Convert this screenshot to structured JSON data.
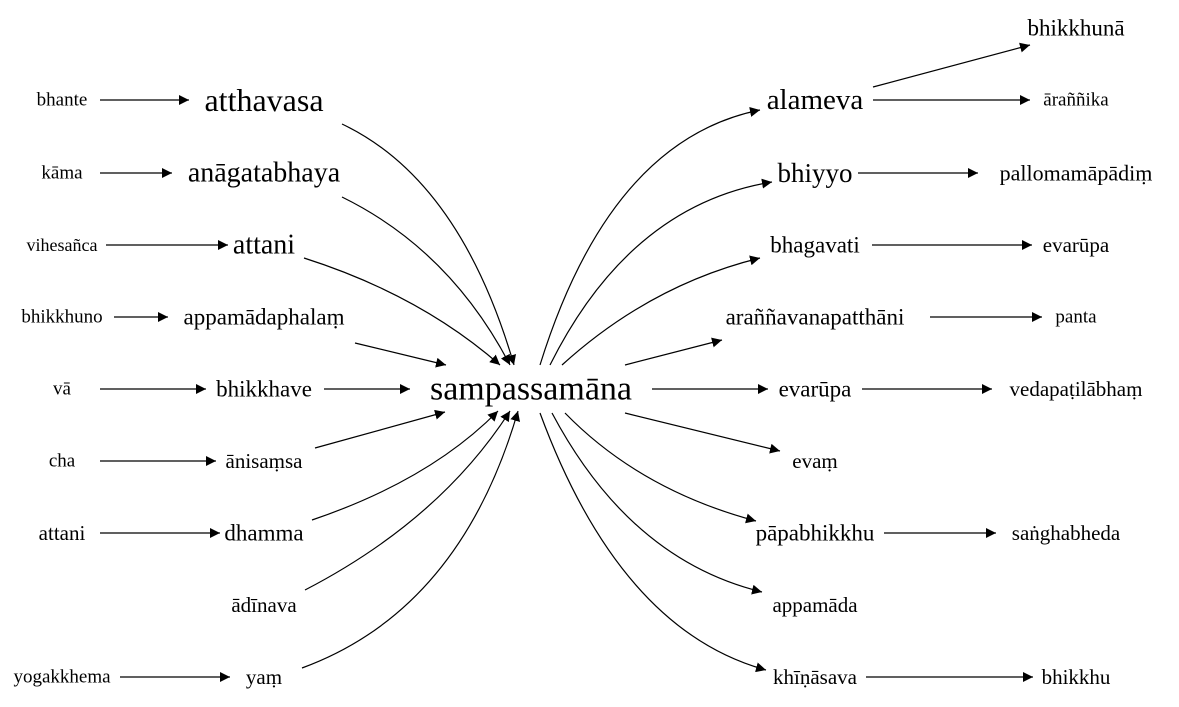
{
  "diagram": {
    "center": "sampassamāna",
    "left_main": [
      "atthavasa",
      "anāgatabhaya",
      "attani",
      "appamādaphalaṃ",
      "bhikkhave",
      "ānisaṃsa",
      "dhamma",
      "ādīnava",
      "yaṃ"
    ],
    "left_prefix": [
      "bhante",
      "kāma",
      "vihesañca",
      "bhikkhuno",
      "vā",
      "cha",
      "attani",
      "",
      "yogakkhema"
    ],
    "right_main": [
      "alameva",
      "bhiyyo",
      "bhagavati",
      "araññavanapatthāni",
      "evarūpa",
      "evaṃ",
      "pāpabhikkhu",
      "appamāda",
      "khīṇāsava"
    ],
    "right_suffix": [
      "āraññika",
      "pallomamāpādiṃ",
      "evarūpa",
      "panta",
      "vedapaṭilābhaṃ",
      "",
      "saṅghabheda",
      "",
      "bhikkhu"
    ],
    "extra_node": "bhikkhunā",
    "extra_parent": "alameva"
  }
}
